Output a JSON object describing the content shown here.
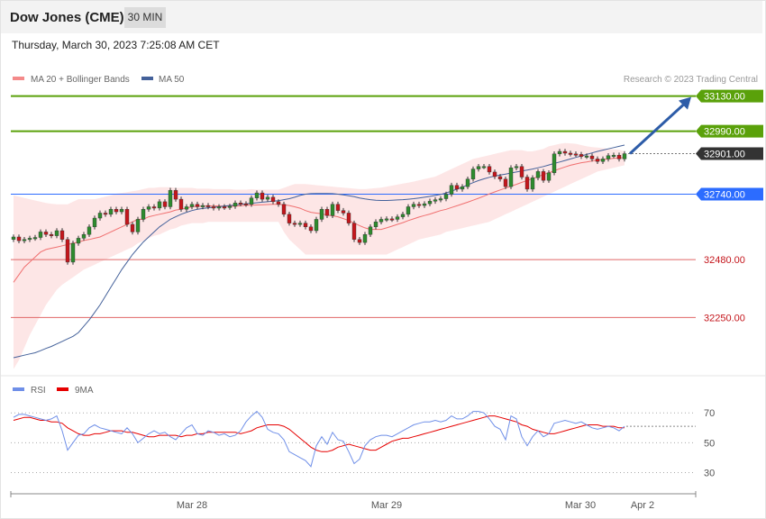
{
  "header": {
    "title": "Dow Jones (CME)",
    "interval": "30 MIN",
    "datetime": "Thursday, March 30, 2023 7:25:08 AM CET"
  },
  "colors": {
    "bullish": "#2e8b2e",
    "bearish": "#c4161c",
    "ma20": "#f07070",
    "band_fill": "#fde3e3",
    "ma50": "#44619a",
    "resistance": "#5aa10a",
    "support": "#e06666",
    "pivot": "#2c6cff",
    "arrow": "#2d5ca8",
    "rsi": "#6f8fe8",
    "rsi_ma": "#e60000"
  },
  "chart_data": [
    {
      "type": "candlestick",
      "legend": [
        {
          "label": "MA 20 + Bollinger Bands",
          "color": "#f48a8a"
        },
        {
          "label": "MA 50",
          "color": "#44619a"
        }
      ],
      "copyright": "Research © 2023 Trading Central",
      "ylim": [
        32040,
        33150
      ],
      "x_ticks": [
        "Mar 28",
        "Mar 29",
        "Mar 30",
        "Apr 2"
      ],
      "levels": [
        {
          "value": 33130,
          "label": "33130.00",
          "kind": "resistance"
        },
        {
          "value": 32990,
          "label": "32990.00",
          "kind": "resistance"
        },
        {
          "value": 32901,
          "label": "32901.00",
          "kind": "last"
        },
        {
          "value": 32740,
          "label": "32740.00",
          "kind": "pivot"
        },
        {
          "value": 32480,
          "label": "32480.00",
          "kind": "support"
        },
        {
          "value": 32250,
          "label": "32250.00",
          "kind": "support"
        }
      ],
      "close": [
        32570,
        32555,
        32560,
        32565,
        32568,
        32590,
        32580,
        32575,
        32595,
        32560,
        32470,
        32545,
        32565,
        32580,
        32610,
        32645,
        32665,
        32660,
        32680,
        32670,
        32680,
        32620,
        32590,
        32640,
        32680,
        32690,
        32685,
        32710,
        32690,
        32755,
        32720,
        32680,
        32690,
        32700,
        32690,
        32695,
        32690,
        32685,
        32690,
        32688,
        32692,
        32705,
        32702,
        32700,
        32725,
        32745,
        32720,
        32728,
        32710,
        32700,
        32660,
        32625,
        32620,
        32625,
        32610,
        32595,
        32640,
        32680,
        32655,
        32700,
        32675,
        32665,
        32625,
        32560,
        32548,
        32580,
        32610,
        32630,
        32640,
        32642,
        32640,
        32650,
        32660,
        32690,
        32700,
        32695,
        32702,
        32712,
        32718,
        32722,
        32740,
        32775,
        32760,
        32770,
        32800,
        32840,
        32850,
        32850,
        32828,
        32810,
        32800,
        32770,
        32845,
        32850,
        32808,
        32760,
        32805,
        32830,
        32795,
        32825,
        32900,
        32910,
        32903,
        32900,
        32898,
        32890,
        32892,
        32880,
        32870,
        32880,
        32893,
        32895,
        32880,
        32901
      ],
      "ma20": [
        32390,
        32420,
        32450,
        32470,
        32490,
        32510,
        32520,
        32525,
        32530,
        32535,
        32540,
        32545,
        32550,
        32556,
        32560,
        32565,
        32570,
        32580,
        32590,
        32600,
        32610,
        32620,
        32630,
        32640,
        32640,
        32650,
        32655,
        32660,
        32665,
        32670,
        32677,
        32680,
        32685,
        32690,
        32692,
        32692,
        32693,
        32693,
        32693,
        32692,
        32692,
        32692,
        32694,
        32696,
        32696,
        32697,
        32698,
        32699,
        32700,
        32700,
        32698,
        32695,
        32690,
        32684,
        32675,
        32668,
        32665,
        32662,
        32657,
        32654,
        32650,
        32643,
        32635,
        32625,
        32615,
        32606,
        32600,
        32600,
        32600,
        32606,
        32613,
        32620,
        32627,
        32635,
        32642,
        32649,
        32655,
        32661,
        32668,
        32675,
        32680,
        32687,
        32694,
        32701,
        32708,
        32716,
        32724,
        32732,
        32741,
        32749,
        32757,
        32764,
        32772,
        32779,
        32787,
        32794,
        32802,
        32810,
        32818,
        32825,
        32833,
        32841,
        32848,
        32855,
        32860,
        32865,
        32868,
        32872,
        32875,
        32878,
        32880,
        32882,
        32884,
        32885
      ],
      "bb_upper": [
        32735,
        32730,
        32725,
        32720,
        32715,
        32710,
        32705,
        32702,
        32700,
        32700,
        32700,
        32710,
        32720,
        32720,
        32720,
        32720,
        32725,
        32730,
        32735,
        32742,
        32745,
        32748,
        32752,
        32755,
        32760,
        32765,
        32765,
        32768,
        32768,
        32768,
        32765,
        32765,
        32765,
        32765,
        32762,
        32762,
        32762,
        32760,
        32760,
        32760,
        32760,
        32758,
        32758,
        32758,
        32760,
        32758,
        32758,
        32758,
        32758,
        32758,
        32765,
        32773,
        32780,
        32780,
        32780,
        32778,
        32776,
        32774,
        32772,
        32770,
        32768,
        32766,
        32764,
        32762,
        32760,
        32760,
        32762,
        32764,
        32766,
        32770,
        32774,
        32778,
        32782,
        32786,
        32790,
        32795,
        32800,
        32805,
        32810,
        32820,
        32830,
        32840,
        32850,
        32860,
        32870,
        32880,
        32885,
        32890,
        32895,
        32900,
        32905,
        32910,
        32915,
        32915,
        32915,
        32910,
        32910,
        32915,
        32920,
        32930,
        32935,
        32940,
        32943,
        32942,
        32940,
        32935,
        32930,
        32927,
        32925,
        32923,
        32920,
        32918,
        32917,
        32910
      ],
      "bb_lower": [
        32045,
        32080,
        32130,
        32180,
        32220,
        32260,
        32300,
        32330,
        32360,
        32380,
        32395,
        32410,
        32425,
        32440,
        32450,
        32460,
        32470,
        32480,
        32490,
        32500,
        32510,
        32520,
        32530,
        32545,
        32555,
        32565,
        32575,
        32580,
        32590,
        32600,
        32605,
        32615,
        32620,
        32625,
        32625,
        32625,
        32630,
        32630,
        32630,
        32630,
        32630,
        32630,
        32630,
        32630,
        32630,
        32630,
        32630,
        32630,
        32630,
        32630,
        32590,
        32560,
        32540,
        32520,
        32500,
        32500,
        32500,
        32500,
        32500,
        32500,
        32500,
        32500,
        32500,
        32500,
        32500,
        32500,
        32500,
        32500,
        32500,
        32500,
        32510,
        32520,
        32530,
        32540,
        32550,
        32560,
        32565,
        32570,
        32575,
        32580,
        32590,
        32595,
        32600,
        32605,
        32610,
        32615,
        32620,
        32625,
        32630,
        32640,
        32650,
        32660,
        32670,
        32680,
        32690,
        32700,
        32710,
        32720,
        32730,
        32740,
        32750,
        32760,
        32770,
        32780,
        32790,
        32800,
        32810,
        32820,
        32830,
        32835,
        32840,
        32845,
        32850,
        32855
      ],
      "ma50": [
        32090,
        32095,
        32100,
        32105,
        32110,
        32118,
        32127,
        32135,
        32145,
        32155,
        32165,
        32175,
        32190,
        32215,
        32240,
        32270,
        32300,
        32335,
        32370,
        32405,
        32440,
        32470,
        32500,
        32525,
        32550,
        32570,
        32590,
        32610,
        32625,
        32640,
        32650,
        32660,
        32668,
        32675,
        32680,
        32683,
        32686,
        32688,
        32690,
        32693,
        32695,
        32697,
        32700,
        32702,
        32704,
        32706,
        32708,
        32710,
        32712,
        32714,
        32718,
        32722,
        32728,
        32735,
        32740,
        32742,
        32743,
        32743,
        32743,
        32742,
        32740,
        32737,
        32734,
        32730,
        32725,
        32721,
        32718,
        32716,
        32715,
        32715,
        32716,
        32717,
        32718,
        32720,
        32722,
        32725,
        32728,
        32731,
        32735,
        32739,
        32745,
        32752,
        32760,
        32768,
        32777,
        32786,
        32794,
        32801,
        32807,
        32812,
        32816,
        32820,
        32824,
        32828,
        32832,
        32836,
        32840,
        32845,
        32850,
        32856,
        32862,
        32868,
        32874,
        32880,
        32886,
        32892,
        32898,
        32904,
        32910,
        32915,
        32920,
        32925,
        32930,
        32935
      ]
    },
    {
      "type": "line",
      "legend": [
        {
          "label": "RSI",
          "color": "#6f8fe8"
        },
        {
          "label": "9MA",
          "color": "#e60000"
        }
      ],
      "ylim": [
        20,
        78
      ],
      "y_ticks": [
        70,
        50,
        30
      ],
      "rsi": [
        67,
        69,
        69,
        68,
        67,
        66,
        65,
        66,
        68,
        58,
        45,
        50,
        55,
        56,
        60,
        62,
        60,
        59,
        58,
        57,
        56,
        60,
        56,
        50,
        53,
        56,
        58,
        56,
        57,
        54,
        52,
        56,
        60,
        62,
        56,
        55,
        58,
        57,
        55,
        56,
        54,
        55,
        58,
        64,
        68,
        71,
        67,
        59,
        57,
        56,
        52,
        44,
        42,
        40,
        38,
        34,
        48,
        54,
        49,
        57,
        52,
        51,
        44,
        36,
        39,
        48,
        52,
        54,
        55,
        55,
        54,
        56,
        58,
        60,
        62,
        63,
        64,
        64,
        65,
        64,
        65,
        68,
        66,
        66,
        68,
        71,
        71,
        70,
        66,
        61,
        59,
        52,
        68,
        66,
        54,
        48,
        54,
        58,
        54,
        56,
        63,
        64,
        65,
        64,
        63,
        64,
        62,
        60,
        59,
        60,
        61,
        60,
        58,
        61
      ],
      "rsi_ma": [
        65,
        66,
        67,
        67,
        66,
        65,
        65,
        64,
        64,
        63,
        60,
        58,
        56,
        55,
        55,
        56,
        56,
        57,
        58,
        58,
        58,
        57,
        57,
        56,
        55,
        54,
        54,
        55,
        55,
        55,
        55,
        54,
        55,
        55,
        56,
        56,
        57,
        57,
        57,
        57,
        57,
        57,
        56,
        57,
        58,
        60,
        61,
        62,
        62,
        62,
        61,
        59,
        56,
        53,
        50,
        47,
        45,
        44,
        44,
        45,
        47,
        48,
        49,
        48,
        47,
        46,
        45,
        45,
        47,
        49,
        51,
        52,
        53,
        53,
        54,
        55,
        56,
        57,
        58,
        59,
        60,
        61,
        62,
        63,
        64,
        65,
        66,
        67,
        68,
        68,
        67,
        66,
        65,
        64,
        62,
        61,
        59,
        58,
        57,
        56,
        56,
        57,
        58,
        59,
        60,
        61,
        62,
        62,
        62,
        61,
        61,
        61,
        60,
        60
      ]
    }
  ]
}
